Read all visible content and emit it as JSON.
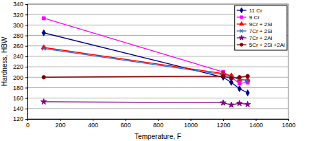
{
  "chart_data": {
    "type": "line",
    "x_label": "Temperature, F",
    "y_label": "Hardness, HBW",
    "x": [
      100,
      1200,
      1250,
      1300,
      1350
    ],
    "series": [
      {
        "name": "11 Cr",
        "color": "#000080",
        "marker": "diamond",
        "values": [
          285,
          200,
          190,
          178,
          170
        ]
      },
      {
        "name": "9 Cr",
        "color": "#ff00ff",
        "marker": "square",
        "values": [
          313,
          210,
          200,
          188,
          190
        ]
      },
      {
        "name": "9Cr + 2Si",
        "color": "#ff0000",
        "marker": "triangle",
        "values": [
          257,
          207,
          203,
          195,
          195
        ]
      },
      {
        "name": "7Cr + 2Si",
        "color": "#3366cc",
        "marker": "x",
        "values": [
          255,
          205,
          200,
          197,
          193
        ]
      },
      {
        "name": "7Cr + 2Al",
        "color": "#800080",
        "marker": "star",
        "values": [
          153,
          151,
          147,
          150,
          148
        ]
      },
      {
        "name": "5Cr + 2Si +2Al",
        "color": "#800000",
        "marker": "circle",
        "values": [
          200,
          202,
          198,
          200,
          202
        ]
      }
    ],
    "xlim": [
      0,
      1600
    ],
    "xticks": [
      0,
      200,
      400,
      600,
      800,
      1000,
      1200,
      1400,
      1600
    ],
    "ylim": [
      120,
      340
    ],
    "yticks": [
      120,
      140,
      160,
      180,
      200,
      220,
      240,
      260,
      280,
      300,
      320,
      340
    ],
    "grid": true,
    "legend": "upper right"
  }
}
